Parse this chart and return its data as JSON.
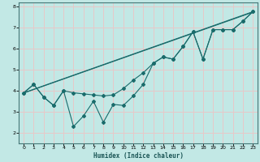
{
  "xlabel": "Humidex (Indice chaleur)",
  "ylabel": "",
  "background_color": "#c2e8e5",
  "grid_color": "#e8c8c8",
  "line_color": "#1a6b6b",
  "marker_color": "#1a6b6b",
  "xlim": [
    -0.5,
    23.5
  ],
  "ylim": [
    1.5,
    8.2
  ],
  "xticks": [
    0,
    1,
    2,
    3,
    4,
    5,
    6,
    7,
    8,
    9,
    10,
    11,
    12,
    13,
    14,
    15,
    16,
    17,
    18,
    19,
    20,
    21,
    22,
    23
  ],
  "yticks": [
    2,
    3,
    4,
    5,
    6,
    7,
    8
  ],
  "line1_x": [
    0,
    1,
    2,
    3,
    4,
    5,
    6,
    7,
    8,
    9,
    10,
    11,
    12,
    13,
    14,
    15,
    16,
    17,
    18,
    19,
    20,
    21,
    22,
    23
  ],
  "line1_y": [
    3.9,
    4.3,
    3.7,
    3.3,
    4.0,
    2.3,
    2.8,
    3.5,
    2.5,
    3.35,
    3.3,
    3.75,
    4.3,
    5.3,
    5.6,
    5.5,
    6.1,
    6.8,
    5.5,
    6.9,
    6.9,
    6.9,
    7.3,
    7.75
  ],
  "line2_x": [
    0,
    1,
    2,
    3,
    4,
    5,
    6,
    7,
    8,
    9,
    10,
    11,
    12,
    13,
    14,
    15,
    16,
    17,
    18,
    19,
    20,
    21,
    22,
    23
  ],
  "line2_y": [
    3.9,
    4.3,
    3.7,
    3.3,
    4.0,
    3.9,
    3.85,
    3.8,
    3.75,
    3.8,
    4.1,
    4.5,
    4.85,
    5.3,
    5.6,
    5.5,
    6.1,
    6.8,
    5.5,
    6.9,
    6.9,
    6.9,
    7.3,
    7.75
  ],
  "line3_x": [
    0,
    23
  ],
  "line3_y": [
    3.9,
    7.75
  ],
  "line4_x": [
    0,
    23
  ],
  "line4_y": [
    3.9,
    7.75
  ]
}
